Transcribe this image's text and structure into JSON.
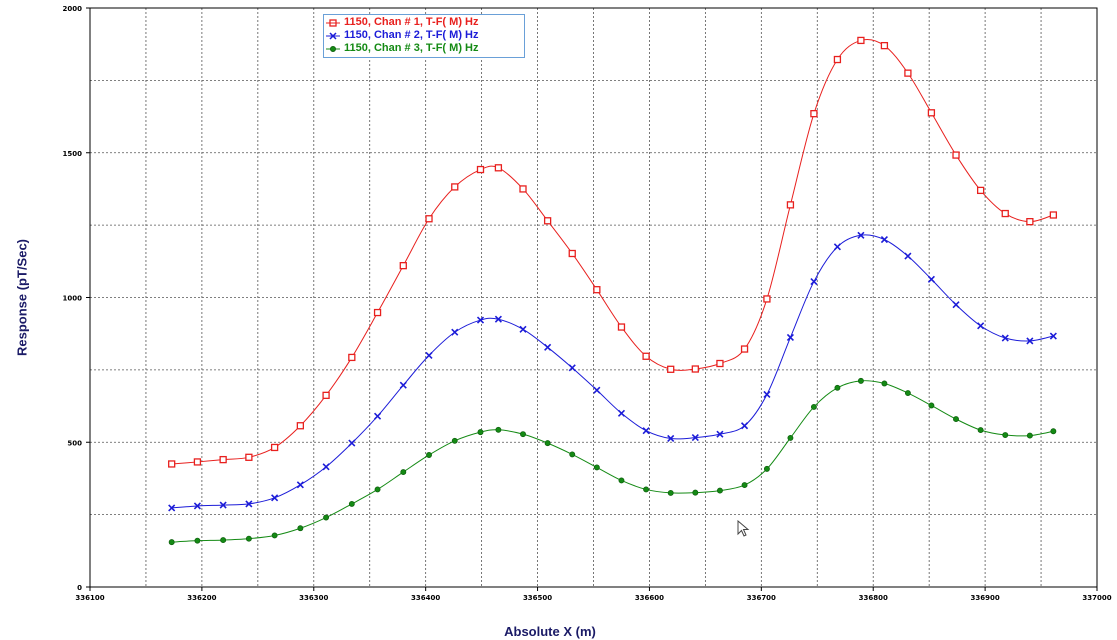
{
  "chart_data": {
    "type": "line",
    "title": "",
    "xlabel": "Absolute X (m)",
    "ylabel": "Response (pT/Sec)",
    "xlim": [
      336100,
      337000
    ],
    "ylim": [
      0,
      2000
    ],
    "xticks": [
      336100,
      336200,
      336300,
      336400,
      336500,
      336600,
      336700,
      336800,
      336900,
      337000
    ],
    "yticks": [
      0,
      500,
      1000,
      1500,
      2000
    ],
    "ygrid_minor": [
      250,
      750,
      1250,
      1750
    ],
    "xgrid_minor": [
      336150,
      336250,
      336350,
      336450,
      336550,
      336650,
      336750,
      336850,
      336950
    ],
    "grid": true,
    "legend_position": "top-left",
    "x": [
      336173,
      336196,
      336219,
      336242,
      336265,
      336288,
      336311,
      336334,
      336357,
      336380,
      336403,
      336426,
      336449,
      336465,
      336487,
      336509,
      336531,
      336553,
      336575,
      336597,
      336619,
      336641,
      336663,
      336685,
      336705,
      336726,
      336747,
      336768,
      336789,
      336810,
      336831,
      336852,
      336874,
      336896,
      336918,
      336940,
      336961
    ],
    "series": [
      {
        "name": "1150, Chan # 1, T-F( M) Hz",
        "color": "#e8201e",
        "marker": "square",
        "values": [
          425,
          432,
          440,
          448,
          482,
          557,
          662,
          793,
          948,
          1110,
          1272,
          1382,
          1442,
          1448,
          1375,
          1265,
          1152,
          1027,
          898,
          797,
          752,
          753,
          772,
          822,
          995,
          1320,
          1635,
          1822,
          1888,
          1870,
          1775,
          1638,
          1492,
          1370,
          1290,
          1262,
          1285
        ]
      },
      {
        "name": "1150, Chan # 2, T-F( M) Hz",
        "color": "#1c1cd8",
        "marker": "x",
        "values": [
          273,
          280,
          283,
          287,
          308,
          353,
          415,
          497,
          590,
          697,
          800,
          880,
          922,
          925,
          890,
          828,
          757,
          680,
          600,
          540,
          513,
          516,
          528,
          557,
          665,
          862,
          1055,
          1175,
          1215,
          1200,
          1143,
          1063,
          975,
          902,
          860,
          850,
          867
        ]
      },
      {
        "name": "1150, Chan # 3, T-F( M) Hz",
        "color": "#148a14",
        "marker": "circle",
        "values": [
          155,
          160,
          162,
          167,
          178,
          203,
          240,
          287,
          337,
          397,
          456,
          505,
          535,
          543,
          528,
          497,
          458,
          413,
          368,
          337,
          325,
          326,
          333,
          352,
          408,
          515,
          622,
          688,
          712,
          703,
          670,
          627,
          580,
          542,
          525,
          523,
          538
        ]
      }
    ]
  }
}
